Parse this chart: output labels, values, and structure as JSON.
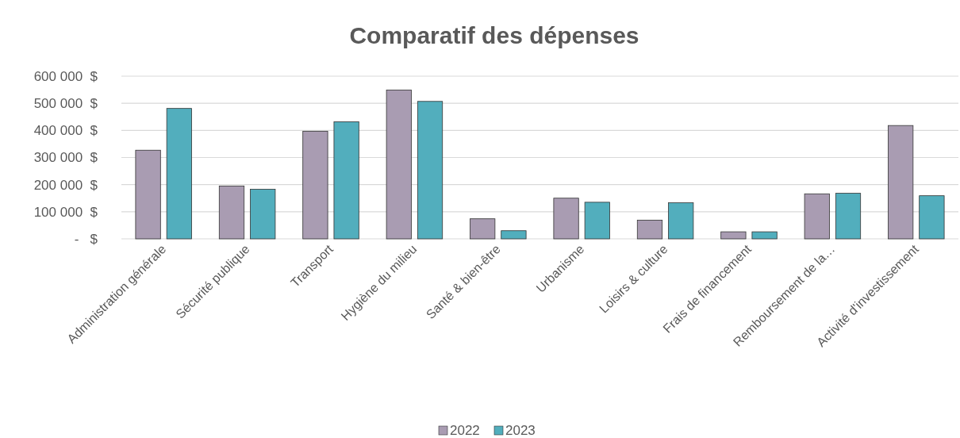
{
  "chart_data": {
    "type": "bar",
    "title": "Comparatif des dépenses",
    "categories": [
      "Administration générale",
      "Sécurité publique",
      "Transport",
      "Hygiène du milieu",
      "Santé & bien-être",
      "Urbanisme",
      "Loisirs & culture",
      "Frais de financement",
      "Remboursement de la…",
      "Activité d'investissement"
    ],
    "series": [
      {
        "name": "2022",
        "color": "#a99cb2",
        "values": [
          327000,
          195000,
          397000,
          549000,
          74000,
          150000,
          69000,
          26000,
          166000,
          418000
        ]
      },
      {
        "name": "2023",
        "color": "#52aebd",
        "values": [
          481000,
          183000,
          432000,
          507000,
          30000,
          135000,
          133000,
          26000,
          168000,
          159000
        ]
      }
    ],
    "ylim": [
      0,
      600000
    ],
    "yticks": [
      {
        "value": 0,
        "label": "-   $"
      },
      {
        "value": 100000,
        "label": "100 000  $"
      },
      {
        "value": 200000,
        "label": "200 000  $"
      },
      {
        "value": 300000,
        "label": "300 000  $"
      },
      {
        "value": 400000,
        "label": "400 000  $"
      },
      {
        "value": 500000,
        "label": "500 000  $"
      },
      {
        "value": 600000,
        "label": "600 000  $"
      }
    ],
    "grid": "y",
    "legend": "bottom"
  }
}
